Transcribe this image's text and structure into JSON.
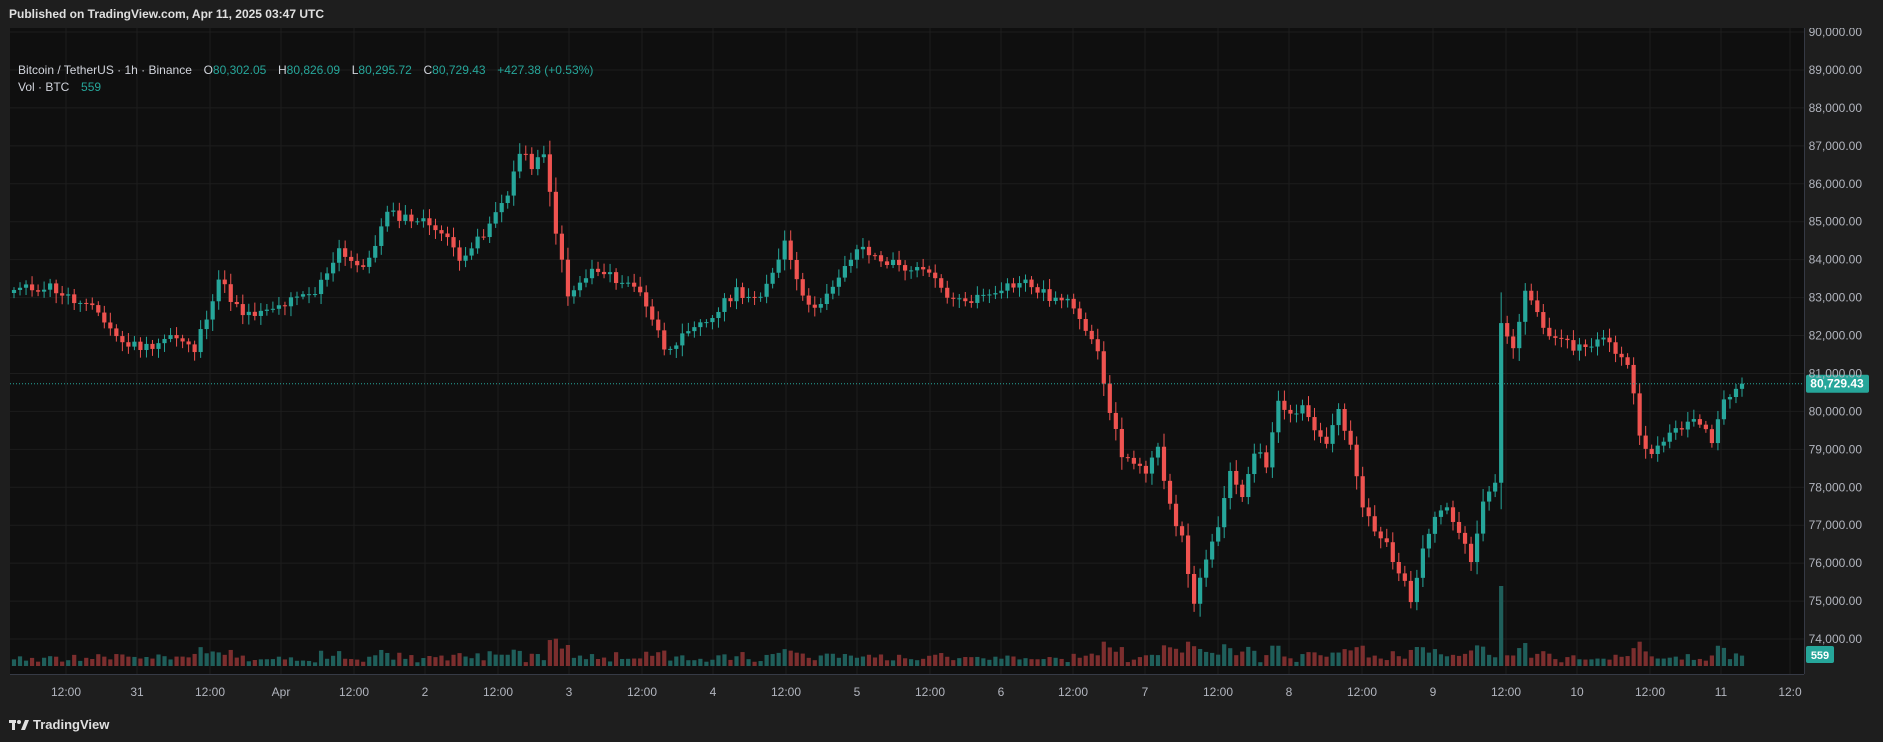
{
  "header": {
    "published": "Published on TradingView.com, Apr 11, 2025 03:47 UTC"
  },
  "footer": {
    "brand": "TradingView"
  },
  "legend": {
    "symbol": "Bitcoin / TetherUS · 1h · Binance",
    "open_label": "O",
    "open": "80,302.05",
    "high_label": "H",
    "high": "80,826.09",
    "low_label": "L",
    "low": "80,295.72",
    "close_label": "C",
    "close": "80,729.43",
    "change": "+427.38 (+0.53%)",
    "volume_label": "Vol · BTC",
    "volume": "559"
  },
  "colors": {
    "up": "#26a69a",
    "down": "#ef5350",
    "vol_up": "#1f5f5b",
    "vol_down": "#7c2e2e",
    "background": "#0f0f0f",
    "grid": "#1d1d1d",
    "text": "#d1d4dc"
  },
  "chart_data": {
    "type": "candlestick",
    "timeframe": "1h",
    "x_ticks": [
      "12:00",
      "31",
      "12:00",
      "Apr",
      "12:00",
      "2",
      "12:00",
      "3",
      "12:00",
      "4",
      "12:00",
      "5",
      "12:00",
      "6",
      "12:00",
      "7",
      "12:00",
      "8",
      "12:00",
      "9",
      "12:00",
      "10",
      "12:00",
      "11",
      "12:0"
    ],
    "y_ticks": [
      "90,000.00",
      "89,000.00",
      "88,000.00",
      "87,000.00",
      "86,000.00",
      "85,000.00",
      "84,000.00",
      "83,000.00",
      "82,000.00",
      "81,000.00",
      "80,000.00",
      "79,000.00",
      "78,000.00",
      "77,000.00",
      "76,000.00",
      "75,000.00",
      "74,000.00"
    ],
    "ylim": [
      73000,
      90500
    ],
    "last_price": 80729.43,
    "last_price_label": "80,729.43",
    "last_volume_label": "559",
    "close_path": [
      [
        0,
        83200
      ],
      [
        6,
        83300
      ],
      [
        10,
        82900
      ],
      [
        14,
        82600
      ],
      [
        18,
        81800
      ],
      [
        22,
        81700
      ],
      [
        26,
        82000
      ],
      [
        30,
        81600
      ],
      [
        34,
        83500
      ],
      [
        38,
        82500
      ],
      [
        42,
        82600
      ],
      [
        46,
        82900
      ],
      [
        50,
        83100
      ],
      [
        54,
        84300
      ],
      [
        58,
        83700
      ],
      [
        62,
        85200
      ],
      [
        66,
        85100
      ],
      [
        70,
        84900
      ],
      [
        74,
        84100
      ],
      [
        78,
        84600
      ],
      [
        82,
        85800
      ],
      [
        84,
        86800
      ],
      [
        86,
        86500
      ],
      [
        88,
        86700
      ],
      [
        90,
        84800
      ],
      [
        92,
        83000
      ],
      [
        96,
        83700
      ],
      [
        100,
        83500
      ],
      [
        104,
        83200
      ],
      [
        108,
        81700
      ],
      [
        112,
        82000
      ],
      [
        116,
        82500
      ],
      [
        120,
        83200
      ],
      [
        124,
        82900
      ],
      [
        128,
        84500
      ],
      [
        132,
        82700
      ],
      [
        136,
        83200
      ],
      [
        140,
        84300
      ],
      [
        144,
        84000
      ],
      [
        148,
        83800
      ],
      [
        152,
        83600
      ],
      [
        156,
        82900
      ],
      [
        160,
        83000
      ],
      [
        164,
        83300
      ],
      [
        168,
        83400
      ],
      [
        172,
        83000
      ],
      [
        176,
        82800
      ],
      [
        180,
        81700
      ],
      [
        181,
        80600
      ],
      [
        184,
        78900
      ],
      [
        188,
        78300
      ],
      [
        190,
        79000
      ],
      [
        192,
        77600
      ],
      [
        194,
        76600
      ],
      [
        196,
        75000
      ],
      [
        198,
        76000
      ],
      [
        200,
        77000
      ],
      [
        202,
        78300
      ],
      [
        204,
        77800
      ],
      [
        206,
        79000
      ],
      [
        208,
        78600
      ],
      [
        210,
        80400
      ],
      [
        212,
        79900
      ],
      [
        214,
        80200
      ],
      [
        216,
        79500
      ],
      [
        218,
        79200
      ],
      [
        220,
        80000
      ],
      [
        222,
        79000
      ],
      [
        224,
        77500
      ],
      [
        226,
        76800
      ],
      [
        228,
        76500
      ],
      [
        230,
        75800
      ],
      [
        232,
        75000
      ],
      [
        234,
        76500
      ],
      [
        236,
        77300
      ],
      [
        238,
        77500
      ],
      [
        240,
        76800
      ],
      [
        242,
        76000
      ],
      [
        244,
        77500
      ],
      [
        246,
        78200
      ],
      [
        247,
        82200
      ],
      [
        249,
        81600
      ],
      [
        251,
        83200
      ],
      [
        253,
        82600
      ],
      [
        256,
        81800
      ],
      [
        260,
        81700
      ],
      [
        264,
        81900
      ],
      [
        268,
        81300
      ],
      [
        270,
        79500
      ],
      [
        272,
        78800
      ],
      [
        276,
        79600
      ],
      [
        280,
        79700
      ],
      [
        282,
        79300
      ],
      [
        284,
        80300
      ],
      [
        286,
        80729
      ]
    ]
  }
}
